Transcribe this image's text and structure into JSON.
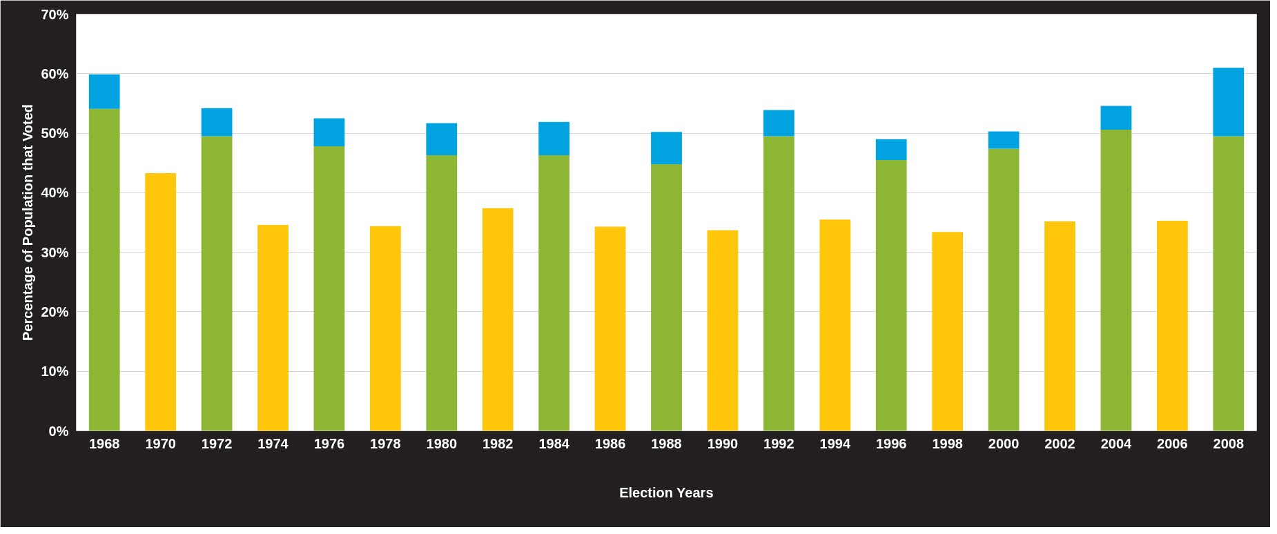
{
  "chart_data": {
    "type": "bar",
    "stacked": true,
    "xlabel": "Election Years",
    "ylabel": "Percentage of Population that Voted",
    "categories": [
      "1968",
      "1970",
      "1972",
      "1974",
      "1976",
      "1978",
      "1980",
      "1982",
      "1984",
      "1986",
      "1988",
      "1990",
      "1992",
      "1994",
      "1996",
      "1998",
      "2000",
      "2002",
      "2004",
      "2006",
      "2008"
    ],
    "series": [
      {
        "color": "#8db634",
        "values": [
          54.1,
          null,
          49.5,
          null,
          47.8,
          null,
          46.3,
          null,
          46.3,
          null,
          44.8,
          null,
          49.5,
          null,
          45.5,
          null,
          47.4,
          null,
          50.6,
          null,
          49.5
        ]
      },
      {
        "color": "#ffc60b",
        "values": [
          null,
          43.3,
          null,
          34.6,
          null,
          34.4,
          null,
          37.4,
          null,
          34.3,
          null,
          33.7,
          null,
          35.5,
          null,
          33.4,
          null,
          35.2,
          null,
          35.3,
          null
        ]
      },
      {
        "color": "#00a3e0",
        "values": [
          5.8,
          null,
          4.7,
          null,
          4.7,
          null,
          5.4,
          null,
          5.6,
          null,
          5.4,
          null,
          4.4,
          null,
          3.5,
          null,
          2.9,
          null,
          4.0,
          null,
          11.5
        ]
      }
    ],
    "ylim": [
      0,
      70
    ],
    "yticks": [
      {
        "value": 0,
        "label": "0%"
      },
      {
        "value": 10,
        "label": "10%"
      },
      {
        "value": 20,
        "label": "20%"
      },
      {
        "value": 30,
        "label": "30%"
      },
      {
        "value": 40,
        "label": "40%"
      },
      {
        "value": 50,
        "label": "50%"
      },
      {
        "value": 60,
        "label": "60%"
      },
      {
        "value": 70,
        "label": "70%"
      }
    ],
    "grid": "y"
  }
}
